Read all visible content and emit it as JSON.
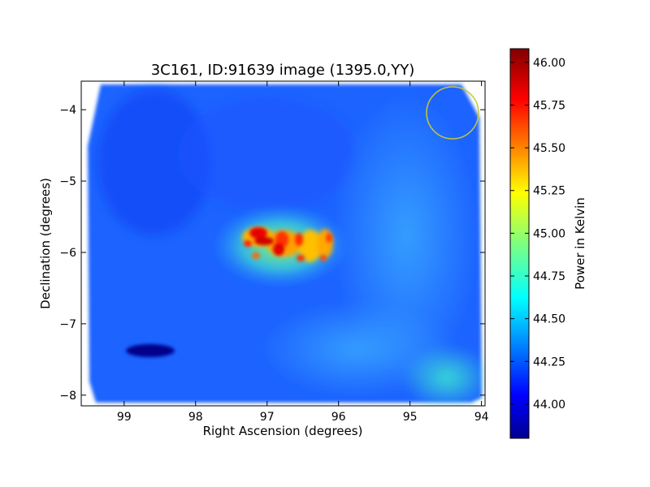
{
  "chart_data": {
    "type": "heatmap",
    "title": "3C161, ID:91639 image (1395.0,YY)",
    "xlabel": "Right Ascension (degrees)",
    "ylabel": "Declination (degrees)",
    "colorbar_label": "Power in Kelvin",
    "xlim": [
      99.6,
      93.95
    ],
    "ylim": [
      -8.15,
      -3.6
    ],
    "x_ticks": [
      99,
      98,
      97,
      96,
      95,
      94
    ],
    "y_ticks": [
      -4,
      -5,
      -6,
      -7,
      -8
    ],
    "colorbar_ticks": [
      "44.00",
      "44.25",
      "44.50",
      "44.75",
      "45.00",
      "45.25",
      "45.50",
      "45.75",
      "46.00"
    ],
    "colorbar_range": [
      43.8,
      46.08
    ],
    "colormap": "jet",
    "background_level": 44.25,
    "features": [
      {
        "name": "bright-source",
        "ra": 96.8,
        "dec": -5.9,
        "peak": 46.0
      },
      {
        "name": "cold-spot",
        "ra": 98.65,
        "dec": -7.38,
        "value": 43.85
      },
      {
        "name": "warm-corner",
        "ra": 94.6,
        "dec": -7.8,
        "value": 44.65
      }
    ],
    "marker_circle": {
      "ra": 94.38,
      "dec": -4.02,
      "radius_deg": 0.37,
      "color": "#c8c832"
    }
  }
}
